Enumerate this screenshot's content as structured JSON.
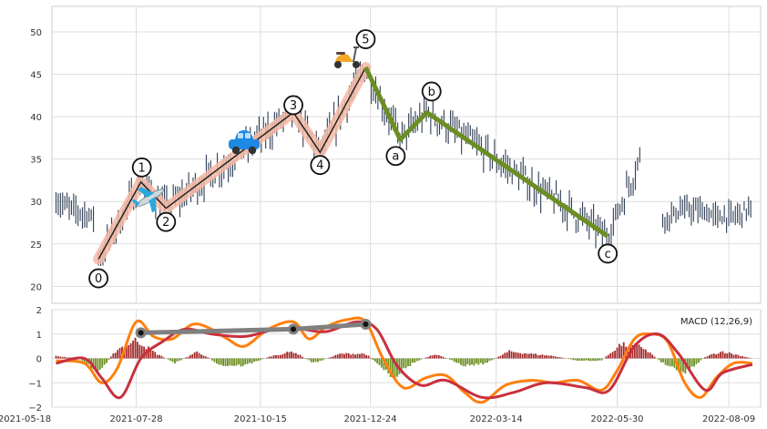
{
  "chart_data": [
    {
      "type": "candlestick",
      "title": "",
      "xlabel": "",
      "ylabel": "",
      "ylim": [
        18,
        53
      ],
      "y_ticks": [
        "20",
        "25",
        "30",
        "35",
        "40",
        "45",
        "50"
      ],
      "x_ticks": [
        "2021-05-18",
        "2021-07-28",
        "2021-10-15",
        "2021-12-24",
        "2022-03-14",
        "2022-05-30",
        "2022-08-09"
      ],
      "grid": true,
      "colors": {
        "candle": "#2f3e55",
        "impulse_line": "#222222",
        "impulse_band": "#f4b9a4",
        "corrective_line": "#6b8e23"
      },
      "wave_points": [
        {
          "label": "0",
          "date": "2021-07-04",
          "price": 23.2
        },
        {
          "label": "1",
          "date": "2021-07-31",
          "price": 32.3
        },
        {
          "label": "2",
          "date": "2021-08-16",
          "price": 29.2
        },
        {
          "label": "3",
          "date": "2021-11-05",
          "price": 40.5
        },
        {
          "label": "4",
          "date": "2021-11-22",
          "price": 35.8
        },
        {
          "label": "5",
          "date": "2021-12-21",
          "price": 45.8
        },
        {
          "label": "a",
          "date": "2022-01-12",
          "price": 37.3
        },
        {
          "label": "b",
          "date": "2022-01-29",
          "price": 40.5
        },
        {
          "label": "c",
          "date": "2022-05-24",
          "price": 25.9
        }
      ],
      "segments": [
        {
          "from_date": "2021-06-07",
          "to_date": "2021-07-01",
          "low": 27.5,
          "high": 31.5
        },
        {
          "from_date": "2021-07-04",
          "to_date": "2022-06-14",
          "low": 22.8,
          "high": 46.2
        },
        {
          "from_date": "2022-06-28",
          "to_date": "2022-08-24",
          "low": 26.5,
          "high": 31.0
        }
      ],
      "icons": [
        "airplane-icon",
        "car-icon",
        "scooter-icon"
      ]
    },
    {
      "type": "line",
      "legend": "MACD (12,26,9)",
      "ylim": [
        -2,
        2
      ],
      "y_ticks": [
        "2",
        "1",
        "0",
        "−1",
        "−2"
      ],
      "colors": {
        "macd": "#ff7f0e",
        "signal": "#c9303e",
        "hist_pos": "#a52a2a",
        "hist_neg": "#6b8e23",
        "trend": "#808080"
      },
      "trend_points": [
        {
          "date": "2021-07-31",
          "value": 1.05
        },
        {
          "date": "2021-11-05",
          "value": 1.2
        },
        {
          "date": "2021-12-21",
          "value": 1.4
        }
      ],
      "macd_knots": [
        {
          "date": "2021-06-07",
          "value": -0.1
        },
        {
          "date": "2021-06-25",
          "value": -0.2
        },
        {
          "date": "2021-07-06",
          "value": -1.0
        },
        {
          "date": "2021-07-16",
          "value": -0.4
        },
        {
          "date": "2021-07-28",
          "value": 1.5
        },
        {
          "date": "2021-08-08",
          "value": 0.9
        },
        {
          "date": "2021-08-20",
          "value": 0.8
        },
        {
          "date": "2021-09-02",
          "value": 1.4
        },
        {
          "date": "2021-09-14",
          "value": 1.2
        },
        {
          "date": "2021-09-24",
          "value": 0.8
        },
        {
          "date": "2021-10-05",
          "value": 0.5
        },
        {
          "date": "2021-10-20",
          "value": 1.2
        },
        {
          "date": "2021-11-05",
          "value": 1.5
        },
        {
          "date": "2021-11-15",
          "value": 0.8
        },
        {
          "date": "2021-11-26",
          "value": 1.3
        },
        {
          "date": "2021-12-10",
          "value": 1.6
        },
        {
          "date": "2021-12-21",
          "value": 1.5
        },
        {
          "date": "2022-01-01",
          "value": 0.0
        },
        {
          "date": "2022-01-14",
          "value": -1.2
        },
        {
          "date": "2022-01-28",
          "value": -0.8
        },
        {
          "date": "2022-02-10",
          "value": -0.7
        },
        {
          "date": "2022-02-22",
          "value": -1.4
        },
        {
          "date": "2022-03-05",
          "value": -1.8
        },
        {
          "date": "2022-03-20",
          "value": -1.1
        },
        {
          "date": "2022-04-05",
          "value": -0.9
        },
        {
          "date": "2022-04-20",
          "value": -1.0
        },
        {
          "date": "2022-05-05",
          "value": -0.9
        },
        {
          "date": "2022-05-20",
          "value": -1.3
        },
        {
          "date": "2022-05-30",
          "value": -0.5
        },
        {
          "date": "2022-06-10",
          "value": 0.8
        },
        {
          "date": "2022-06-20",
          "value": 1.0
        },
        {
          "date": "2022-07-01",
          "value": 0.7
        },
        {
          "date": "2022-07-12",
          "value": -1.0
        },
        {
          "date": "2022-07-22",
          "value": -1.6
        },
        {
          "date": "2022-08-01",
          "value": -0.8
        },
        {
          "date": "2022-08-12",
          "value": -0.2
        },
        {
          "date": "2022-08-24",
          "value": -0.2
        }
      ],
      "signal_knots": [
        {
          "date": "2021-06-07",
          "value": -0.2
        },
        {
          "date": "2021-06-25",
          "value": 0.0
        },
        {
          "date": "2021-07-06",
          "value": -0.8
        },
        {
          "date": "2021-07-18",
          "value": -1.6
        },
        {
          "date": "2021-07-31",
          "value": 0.0
        },
        {
          "date": "2021-08-14",
          "value": 0.7
        },
        {
          "date": "2021-08-28",
          "value": 1.2
        },
        {
          "date": "2021-09-14",
          "value": 1.0
        },
        {
          "date": "2021-10-05",
          "value": 0.9
        },
        {
          "date": "2021-10-25",
          "value": 1.2
        },
        {
          "date": "2021-11-10",
          "value": 1.2
        },
        {
          "date": "2021-11-26",
          "value": 1.1
        },
        {
          "date": "2021-12-15",
          "value": 1.5
        },
        {
          "date": "2021-12-28",
          "value": 1.2
        },
        {
          "date": "2022-01-10",
          "value": -0.3
        },
        {
          "date": "2022-01-25",
          "value": -1.1
        },
        {
          "date": "2022-02-10",
          "value": -0.9
        },
        {
          "date": "2022-03-05",
          "value": -1.6
        },
        {
          "date": "2022-03-25",
          "value": -1.4
        },
        {
          "date": "2022-04-15",
          "value": -1.0
        },
        {
          "date": "2022-05-10",
          "value": -1.2
        },
        {
          "date": "2022-05-25",
          "value": -1.3
        },
        {
          "date": "2022-06-10",
          "value": 0.5
        },
        {
          "date": "2022-06-25",
          "value": 1.0
        },
        {
          "date": "2022-07-08",
          "value": 0.2
        },
        {
          "date": "2022-07-25",
          "value": -1.3
        },
        {
          "date": "2022-08-05",
          "value": -0.6
        },
        {
          "date": "2022-08-24",
          "value": -0.25
        }
      ],
      "histogram_knots": [
        {
          "date": "2021-06-07",
          "value": 0.1
        },
        {
          "date": "2021-06-22",
          "value": 0.0
        },
        {
          "date": "2021-07-04",
          "value": -0.6
        },
        {
          "date": "2021-07-16",
          "value": 0.4
        },
        {
          "date": "2021-07-28",
          "value": 0.8
        },
        {
          "date": "2021-08-10",
          "value": 0.2
        },
        {
          "date": "2021-08-22",
          "value": -0.2
        },
        {
          "date": "2021-09-05",
          "value": 0.3
        },
        {
          "date": "2021-09-20",
          "value": -0.3
        },
        {
          "date": "2021-10-05",
          "value": -0.3
        },
        {
          "date": "2021-10-22",
          "value": 0.1
        },
        {
          "date": "2021-11-05",
          "value": 0.3
        },
        {
          "date": "2021-11-18",
          "value": -0.2
        },
        {
          "date": "2021-12-05",
          "value": 0.2
        },
        {
          "date": "2021-12-21",
          "value": 0.2
        },
        {
          "date": "2022-01-08",
          "value": -0.8
        },
        {
          "date": "2022-01-20",
          "value": -0.2
        },
        {
          "date": "2022-02-03",
          "value": 0.2
        },
        {
          "date": "2022-02-22",
          "value": -0.3
        },
        {
          "date": "2022-03-08",
          "value": -0.2
        },
        {
          "date": "2022-03-22",
          "value": 0.3
        },
        {
          "date": "2022-04-05",
          "value": 0.2
        },
        {
          "date": "2022-04-20",
          "value": 0.1
        },
        {
          "date": "2022-05-05",
          "value": -0.1
        },
        {
          "date": "2022-05-20",
          "value": -0.1
        },
        {
          "date": "2022-06-01",
          "value": 0.6
        },
        {
          "date": "2022-06-15",
          "value": 0.5
        },
        {
          "date": "2022-06-28",
          "value": -0.2
        },
        {
          "date": "2022-07-12",
          "value": -0.6
        },
        {
          "date": "2022-07-26",
          "value": 0.1
        },
        {
          "date": "2022-08-05",
          "value": 0.3
        },
        {
          "date": "2022-08-24",
          "value": 0.0
        }
      ]
    }
  ]
}
